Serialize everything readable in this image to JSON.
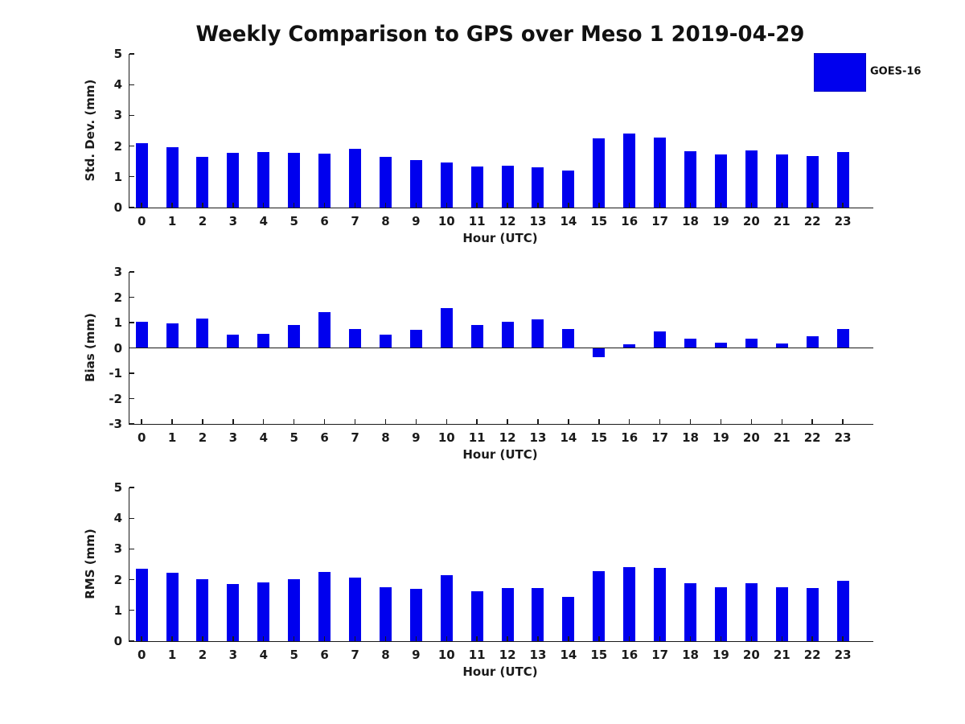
{
  "title": "Weekly Comparison to GPS over Meso 1 2019-04-29",
  "legend": {
    "label": "GOES-16",
    "color": "#0000EE",
    "position": "top-right"
  },
  "colors": {
    "bar": "#0000EE",
    "axis": "#1a1a1a",
    "background": "#ffffff"
  },
  "chart_data": [
    {
      "type": "bar",
      "name": "std-dev-panel",
      "ylabel": "Std. Dev. (mm)",
      "xlabel": "Hour (UTC)",
      "ylim": [
        0,
        5
      ],
      "yticks": [
        0,
        1,
        2,
        3,
        4,
        5
      ],
      "grid": false,
      "categories": [
        "0",
        "1",
        "2",
        "3",
        "4",
        "5",
        "6",
        "7",
        "8",
        "9",
        "10",
        "11",
        "12",
        "13",
        "14",
        "15",
        "16",
        "17",
        "18",
        "19",
        "20",
        "21",
        "22",
        "23"
      ],
      "series": [
        {
          "name": "GOES-16",
          "values": [
            2.1,
            1.97,
            1.64,
            1.77,
            1.81,
            1.79,
            1.75,
            1.9,
            1.66,
            1.55,
            1.46,
            1.33,
            1.37,
            1.31,
            1.2,
            2.24,
            2.4,
            2.29,
            1.84,
            1.72,
            1.86,
            1.72,
            1.67,
            1.8
          ]
        }
      ]
    },
    {
      "type": "bar",
      "name": "bias-panel",
      "ylabel": "Bias (mm)",
      "xlabel": "Hour (UTC)",
      "ylim": [
        -3,
        3
      ],
      "yticks": [
        -3,
        -2,
        -1,
        0,
        1,
        2,
        3
      ],
      "grid": false,
      "categories": [
        "0",
        "1",
        "2",
        "3",
        "4",
        "5",
        "6",
        "7",
        "8",
        "9",
        "10",
        "11",
        "12",
        "13",
        "14",
        "15",
        "16",
        "17",
        "18",
        "19",
        "20",
        "21",
        "22",
        "23"
      ],
      "series": [
        {
          "name": "GOES-16",
          "values": [
            1.04,
            0.97,
            1.16,
            0.52,
            0.55,
            0.9,
            1.42,
            0.76,
            0.52,
            0.7,
            1.57,
            0.92,
            1.03,
            1.13,
            0.75,
            -0.37,
            0.14,
            0.66,
            0.36,
            0.2,
            0.36,
            0.17,
            0.45,
            0.74
          ]
        }
      ]
    },
    {
      "type": "bar",
      "name": "rms-panel",
      "ylabel": "RMS (mm)",
      "xlabel": "Hour (UTC)",
      "ylim": [
        0,
        5
      ],
      "yticks": [
        0,
        1,
        2,
        3,
        4,
        5
      ],
      "grid": false,
      "categories": [
        "0",
        "1",
        "2",
        "3",
        "4",
        "5",
        "6",
        "7",
        "8",
        "9",
        "10",
        "11",
        "12",
        "13",
        "14",
        "15",
        "16",
        "17",
        "18",
        "19",
        "20",
        "21",
        "22",
        "23"
      ],
      "series": [
        {
          "name": "GOES-16",
          "values": [
            2.35,
            2.22,
            2.01,
            1.86,
            1.91,
            2.01,
            2.25,
            2.07,
            1.76,
            1.7,
            2.15,
            1.62,
            1.73,
            1.73,
            1.43,
            2.29,
            2.42,
            2.39,
            1.88,
            1.75,
            1.89,
            1.76,
            1.74,
            1.96
          ]
        }
      ]
    }
  ]
}
